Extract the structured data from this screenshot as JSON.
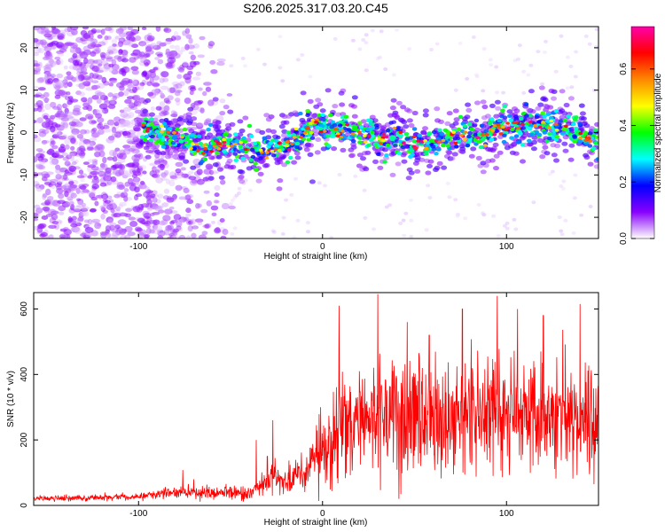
{
  "title": "S206.2025.317.03.20.C45",
  "chart_data": [
    {
      "type": "heatmap",
      "name": "spectrogram",
      "xlabel": "Height of straight line (km)",
      "ylabel": "Frequency (Hz)",
      "xlim": [
        -157,
        150
      ],
      "ylim": [
        -25,
        25
      ],
      "xticks": [
        -100,
        0,
        100
      ],
      "xtick_labels": [
        "-100",
        "0",
        "100"
      ],
      "yticks": [
        -20,
        -10,
        0,
        10,
        20
      ],
      "ytick_labels": [
        "-20",
        "-10",
        "0",
        "10",
        "20"
      ],
      "signal_band": {
        "x": [
          -98,
          -90,
          -82,
          -74,
          -66,
          -58,
          -50,
          -42,
          -34,
          -26,
          -18,
          -10,
          -4,
          0,
          8,
          16,
          24,
          32,
          40,
          48,
          56,
          64,
          72,
          80,
          88,
          96,
          104,
          112,
          120,
          128,
          136,
          144,
          150
        ],
        "center_hz": [
          0.5,
          0.3,
          -1,
          -2,
          -4,
          -2.5,
          -2.5,
          -3.5,
          -5,
          -3.5,
          -2.5,
          0.5,
          2,
          1.5,
          0.5,
          0,
          -0.5,
          -1.5,
          -1,
          -3,
          -2.5,
          -2,
          -1,
          -0.5,
          -0.5,
          1.5,
          1,
          1.5,
          2,
          1.5,
          0,
          -1,
          -2.5
        ]
      },
      "colorbar": {
        "label": "Normalized spectral amplitude",
        "range": [
          0,
          0.75
        ],
        "ticks": [
          0.0,
          0.2,
          0.4,
          0.6
        ],
        "tick_labels": [
          "0.0",
          "0.2",
          "0.4",
          "0.6"
        ],
        "colors": [
          "#ffffff",
          "#8800ff",
          "#0000ff",
          "#00ffff",
          "#00ff00",
          "#ffff00",
          "#ff8800",
          "#ff0000",
          "#ff00aa"
        ]
      }
    },
    {
      "type": "line",
      "name": "snr",
      "xlabel": "Height of straight line (km)",
      "ylabel": "SNR (10 * v/v)",
      "xlim": [
        -157,
        150
      ],
      "ylim": [
        0,
        650
      ],
      "xticks": [
        -100,
        0,
        100
      ],
      "xtick_labels": [
        "-100",
        "0",
        "100"
      ],
      "yticks": [
        0,
        200,
        400,
        600
      ],
      "ytick_labels": [
        "0",
        "200",
        "400",
        "600"
      ],
      "color": "#ff0000",
      "envelope": {
        "x": [
          -157,
          -130,
          -100,
          -80,
          -60,
          -40,
          -30,
          -20,
          -10,
          0,
          10,
          20,
          40,
          60,
          80,
          100,
          120,
          140,
          150
        ],
        "mean": [
          22,
          22,
          26,
          40,
          38,
          38,
          70,
          85,
          100,
          160,
          230,
          260,
          270,
          280,
          280,
          285,
          280,
          270,
          265
        ],
        "spread": [
          8,
          8,
          10,
          18,
          20,
          18,
          35,
          45,
          60,
          90,
          140,
          150,
          160,
          165,
          165,
          170,
          170,
          165,
          160
        ]
      },
      "spikes": [
        [
          -76,
          108
        ],
        [
          -70,
          80
        ],
        [
          -36,
          200
        ],
        [
          -30,
          150
        ],
        [
          -27,
          260
        ],
        [
          -1,
          300
        ],
        [
          9,
          610
        ],
        [
          20,
          410
        ],
        [
          30,
          645
        ],
        [
          46,
          560
        ],
        [
          58,
          520
        ],
        [
          76,
          600
        ],
        [
          95,
          640
        ],
        [
          106,
          600
        ],
        [
          120,
          580
        ],
        [
          140,
          615
        ]
      ]
    }
  ]
}
